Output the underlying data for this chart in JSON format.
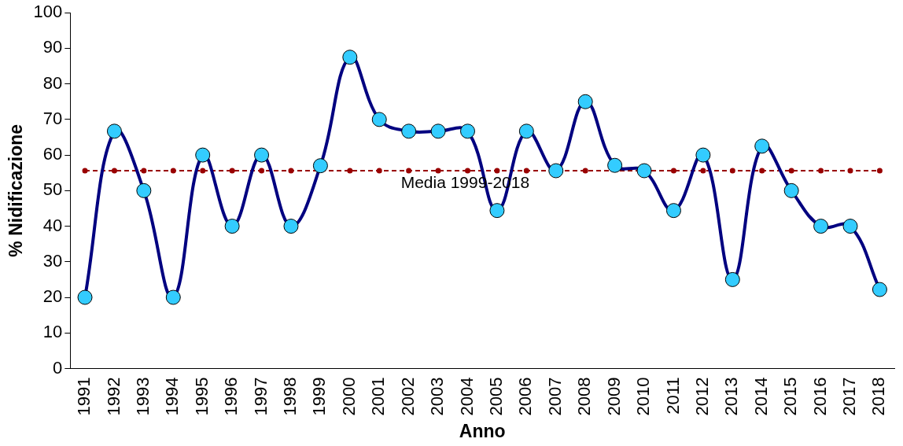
{
  "chart_data": {
    "type": "line",
    "xlabel": "Anno",
    "ylabel": "% Nidificazione",
    "categories": [
      "1991",
      "1992",
      "1993",
      "1994",
      "1995",
      "1996",
      "1997",
      "1998",
      "1999",
      "2000",
      "2001",
      "2002",
      "2003",
      "2004",
      "2005",
      "2006",
      "2007",
      "2008",
      "2009",
      "2010",
      "2011",
      "2012",
      "2013",
      "2014",
      "2015",
      "2016",
      "2017",
      "2018"
    ],
    "series": [
      {
        "color": "#000080",
        "marker": "circle",
        "values": [
          20,
          66.7,
          50,
          20,
          60,
          40,
          60,
          40,
          57,
          87.5,
          70,
          66.7,
          66.7,
          66.7,
          44.4,
          66.7,
          55.6,
          75,
          57.1,
          55.6,
          44.4,
          60,
          25,
          62.5,
          50,
          40,
          40,
          22.2
        ]
      },
      {
        "name": "Media 1999-2018",
        "color": "#990000",
        "line_style": "dashed",
        "marker": "circle",
        "values": [
          55.6,
          55.6,
          55.6,
          55.6,
          55.6,
          55.6,
          55.6,
          55.6,
          null,
          55.6,
          55.6,
          55.6,
          55.6,
          55.6,
          55.6,
          55.6,
          55.6,
          55.6,
          null,
          55.6,
          55.6,
          55.6,
          55.6,
          55.6,
          55.6,
          55.6,
          55.6,
          55.6
        ]
      }
    ],
    "ylim": [
      0,
      100
    ],
    "yticks": [
      0,
      10,
      20,
      30,
      40,
      50,
      60,
      70,
      80,
      90,
      100
    ],
    "grid": false,
    "legend": false
  }
}
